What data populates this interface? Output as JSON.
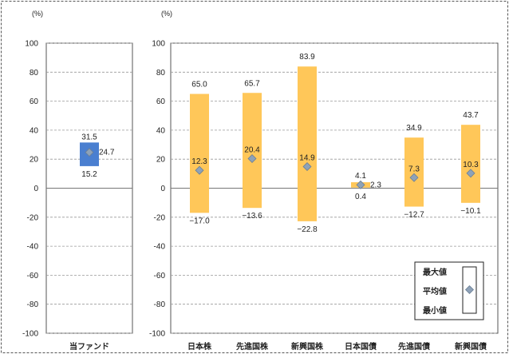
{
  "chart_data": [
    {
      "type": "range",
      "unit": "(%)",
      "ylim": [
        -100,
        100
      ],
      "ticks": [
        100,
        80,
        60,
        40,
        20,
        0,
        -20,
        -40,
        -60,
        -80,
        -100
      ],
      "grid": true,
      "categories": [
        "当ファンド"
      ],
      "series": [
        {
          "max": 31.5,
          "avg": 24.7,
          "min": 15.2,
          "max_label": "31.5",
          "avg_label": "24.7",
          "min_label": "15.2"
        }
      ]
    },
    {
      "type": "range",
      "unit": "(%)",
      "ylim": [
        -100,
        100
      ],
      "ticks": [
        100,
        80,
        60,
        40,
        20,
        0,
        -20,
        -40,
        -60,
        -80,
        -100
      ],
      "grid": true,
      "categories": [
        "日本株",
        "先進国株",
        "新興国株",
        "日本国債",
        "先進国債",
        "新興国債"
      ],
      "series": [
        {
          "max": 65.0,
          "avg": 12.3,
          "min": -17.0,
          "max_label": "65.0",
          "avg_label": "12.3",
          "min_label": "−17.0"
        },
        {
          "max": 65.7,
          "avg": 20.4,
          "min": -13.6,
          "max_label": "65.7",
          "avg_label": "20.4",
          "min_label": "−13.6"
        },
        {
          "max": 83.9,
          "avg": 14.9,
          "min": -22.8,
          "max_label": "83.9",
          "avg_label": "14.9",
          "min_label": "−22.8"
        },
        {
          "max": 4.1,
          "avg": 2.3,
          "min": 0.4,
          "max_label": "4.1",
          "avg_label": "2.3",
          "min_label": "0.4"
        },
        {
          "max": 34.9,
          "avg": 7.3,
          "min": -12.7,
          "max_label": "34.9",
          "avg_label": "7.3",
          "min_label": "−12.7"
        },
        {
          "max": 43.7,
          "avg": 10.3,
          "min": -10.1,
          "max_label": "43.7",
          "avg_label": "10.3",
          "min_label": "−10.1"
        }
      ]
    }
  ],
  "legend": {
    "position": "bottom-right",
    "items": [
      "最大値",
      "平均値",
      "最小値"
    ]
  },
  "colors": {
    "fund_bar": "#4a7fd0",
    "asset_bar": "#ffc759",
    "marker": "#8ea2b8",
    "grid": "#999999",
    "frame": "#555555"
  }
}
